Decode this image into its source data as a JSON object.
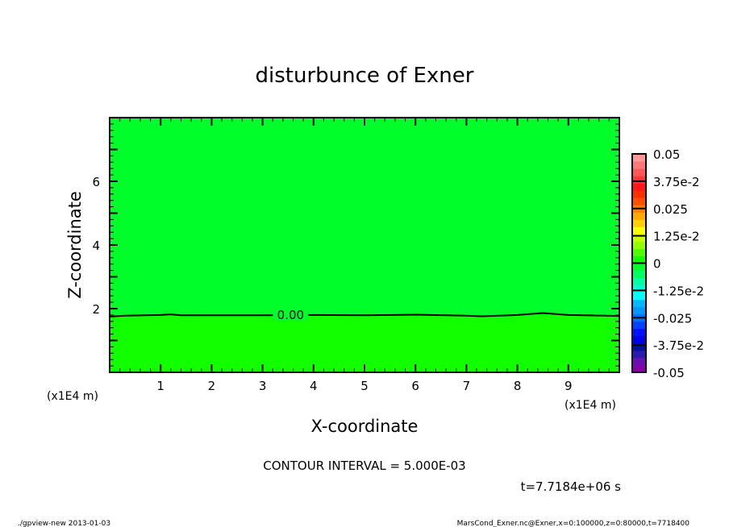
{
  "chart_data": {
    "type": "heatmap",
    "title": "disturbunce of Exner",
    "xlabel": "X-coordinate",
    "ylabel": "Z-coordinate",
    "x_unit_label": "(x1E4 m)",
    "x_unit_label_right": "(x1E4 m)",
    "xlim": [
      0,
      10
    ],
    "ylim": [
      0,
      8
    ],
    "x_ticks": [
      "1",
      "2",
      "3",
      "4",
      "5",
      "6",
      "7",
      "8",
      "9"
    ],
    "y_ticks": [
      "2",
      "4",
      "6"
    ],
    "contour_label": "0.00",
    "contour_zero_line": {
      "x": [
        0,
        0.3,
        1,
        1.2,
        1.4,
        2,
        3,
        4,
        5,
        6,
        7,
        7.3,
        8,
        8.5,
        9,
        10
      ],
      "z": [
        1.75,
        1.78,
        1.8,
        1.82,
        1.79,
        1.79,
        1.79,
        1.8,
        1.79,
        1.81,
        1.78,
        1.76,
        1.8,
        1.86,
        1.8,
        1.77
      ]
    },
    "region_above_color": "#00ff2a",
    "region_below_color": "#12ff00",
    "colorbar": {
      "min": -0.05,
      "max": 0.05,
      "labels": [
        "0.05",
        "3.75e-2",
        "0.025",
        "1.25e-2",
        "0",
        "-1.25e-2",
        "-0.025",
        "-3.75e-2",
        "-0.05"
      ],
      "colors": [
        "#8a00a8",
        "#6a10b0",
        "#2a1ab0",
        "#0010a0",
        "#0000e8",
        "#0010ff",
        "#0040ff",
        "#0070ff",
        "#0098ff",
        "#00b8ff",
        "#00ffff",
        "#00ffd8",
        "#00ffa0",
        "#00ff60",
        "#00ff2a",
        "#12ff00",
        "#50ff00",
        "#90ff00",
        "#c8ff00",
        "#f8ff00",
        "#ffd000",
        "#ffa800",
        "#ff8000",
        "#ff5000",
        "#ff3000",
        "#ff1818",
        "#ff3838",
        "#ff5858",
        "#ff7878",
        "#ff9898"
      ]
    },
    "contour_interval": "CONTOUR INTERVAL = 5.000E-03",
    "time_label": "t=7.7184e+06 s"
  },
  "footer": {
    "left": "./gpview-new  2013-01-03",
    "right": "MarsCond_Exner.nc@Exner,x=0:100000,z=0:80000,t=7718400"
  }
}
